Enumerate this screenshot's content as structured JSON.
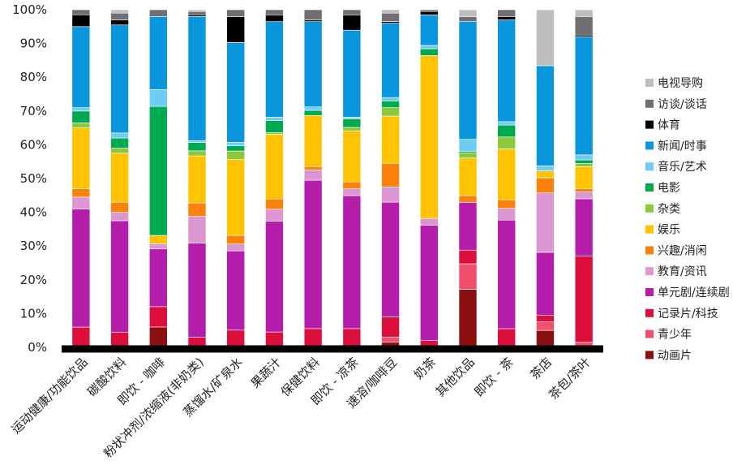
{
  "chart_data": {
    "type": "bar",
    "stacked": true,
    "percent": true,
    "ylim": [
      0,
      100
    ],
    "yticks": [
      "0%",
      "10%",
      "20%",
      "30%",
      "40%",
      "50%",
      "60%",
      "70%",
      "80%",
      "90%",
      "100%"
    ],
    "legend_position": "right",
    "grid": false,
    "categories": [
      "运动健康/功能饮品",
      "碳酸饮料",
      "即饮 - 咖啡",
      "粉状冲剂/浓缩液(非奶类)",
      "蒸馏水/矿泉水",
      "果蔬汁",
      "保健饮料",
      "即饮 - 凉茶",
      "速溶/咖啡豆",
      "奶茶",
      "其他饮品",
      "即饮 - 茶",
      "茶店",
      "茶包/茶叶"
    ],
    "series": [
      {
        "name": "动画片",
        "color": "#8B1010",
        "values": [
          0,
          0,
          6,
          0,
          0,
          0,
          0,
          0,
          1.5,
          0,
          17,
          0,
          5,
          0
        ]
      },
      {
        "name": "青少年",
        "color": "#F0506E",
        "values": [
          0,
          0,
          0,
          0,
          0,
          0,
          0,
          0,
          1.5,
          0,
          7.5,
          0,
          2.5,
          1.5
        ]
      },
      {
        "name": "记录片/科技",
        "color": "#DC0F3C",
        "values": [
          6,
          4.5,
          6,
          3,
          5,
          4.5,
          5.5,
          5.5,
          6,
          2,
          4,
          5.5,
          2,
          25.5
        ]
      },
      {
        "name": "单元剧/连续剧",
        "color": "#B41EAA",
        "values": [
          35,
          33,
          17,
          28,
          23,
          32.5,
          43.5,
          39,
          34,
          34,
          14,
          32,
          18.5,
          17
        ]
      },
      {
        "name": "教育/资讯",
        "color": "#DC96D2",
        "values": [
          3.5,
          2.5,
          1.5,
          8,
          2,
          3.5,
          3,
          2,
          4.5,
          2,
          0,
          3.5,
          17.5,
          2
        ]
      },
      {
        "name": "兴趣/消闲",
        "color": "#FA820A",
        "values": [
          2.5,
          3,
          0,
          4,
          2.5,
          3,
          1,
          2,
          7,
          0,
          2,
          2.5,
          4.5,
          1
        ]
      },
      {
        "name": "娱乐",
        "color": "#FFC300",
        "values": [
          18,
          14.5,
          2.5,
          14,
          22,
          19,
          15,
          15,
          14,
          48,
          11,
          15,
          2,
          6.5
        ]
      },
      {
        "name": "杂类",
        "color": "#8CC83C",
        "values": [
          1.5,
          1.5,
          0,
          1.5,
          2.5,
          0.5,
          0,
          1,
          2.5,
          0,
          1.5,
          3.5,
          0,
          1
        ]
      },
      {
        "name": "电影",
        "color": "#00AA50",
        "values": [
          3.5,
          3,
          38,
          2.5,
          1.5,
          3.5,
          1.5,
          2.5,
          2,
          2,
          0.5,
          3.5,
          0,
          1
        ]
      },
      {
        "name": "音乐/艺术",
        "color": "#6ECDF5",
        "values": [
          1,
          1.5,
          5,
          0.5,
          1,
          1,
          1,
          0.5,
          1,
          1,
          3.5,
          1,
          1.5,
          1.5
        ]
      },
      {
        "name": "新闻/时事",
        "color": "#0A96DC",
        "values": [
          24,
          32,
          21.5,
          37,
          29,
          28,
          25,
          25.5,
          22,
          9,
          34.5,
          30,
          29.5,
          35
        ]
      },
      {
        "name": "体育",
        "color": "#000000",
        "values": [
          3.5,
          1.5,
          0,
          0.5,
          7.5,
          2,
          0.5,
          4.5,
          0.5,
          1,
          0,
          1,
          0,
          0.5
        ]
      },
      {
        "name": "访谈/谈话",
        "color": "#6E6E73",
        "values": [
          1.5,
          2,
          2,
          1,
          2,
          1.5,
          3,
          1.5,
          2.5,
          0.5,
          1.5,
          2,
          0,
          5.5
        ]
      },
      {
        "name": "电视导购",
        "color": "#BEBEBE",
        "values": [
          0,
          1,
          0,
          0.5,
          0,
          0,
          0,
          0,
          1,
          0,
          2,
          0,
          16.5,
          2
        ]
      }
    ]
  }
}
